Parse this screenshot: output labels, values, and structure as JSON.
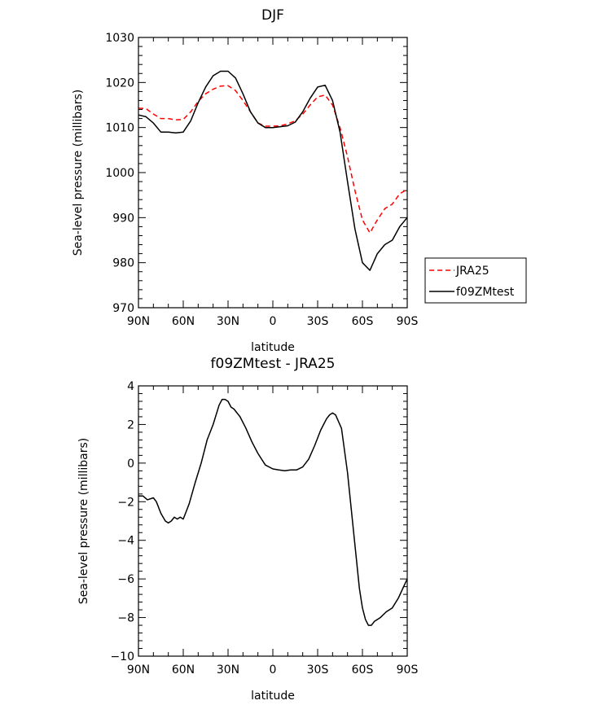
{
  "chart_data": [
    {
      "type": "line",
      "title": "DJF",
      "xlabel": "latitude",
      "ylabel": "Sea-level pressure (millibars)",
      "xlim": [
        90,
        -90
      ],
      "ylim": [
        970,
        1030
      ],
      "x_ticks": [
        {
          "value": 90,
          "label": "90N"
        },
        {
          "value": 60,
          "label": "60N"
        },
        {
          "value": 30,
          "label": "30N"
        },
        {
          "value": 0,
          "label": "0"
        },
        {
          "value": -30,
          "label": "30S"
        },
        {
          "value": -60,
          "label": "60S"
        },
        {
          "value": -90,
          "label": "90S"
        }
      ],
      "y_ticks": [
        970,
        980,
        990,
        1000,
        1010,
        1020,
        1030
      ],
      "legend_position": "right",
      "series": [
        {
          "name": "JRA25",
          "color": "#ff0000",
          "dash": "dashed",
          "x": [
            90,
            85,
            80,
            75,
            70,
            65,
            60,
            55,
            50,
            45,
            40,
            35,
            30,
            25,
            20,
            15,
            10,
            5,
            0,
            -5,
            -10,
            -15,
            -20,
            -25,
            -30,
            -35,
            -40,
            -45,
            -50,
            -55,
            -60,
            -65,
            -70,
            -75,
            -80,
            -85,
            -90
          ],
          "values": [
            1014.3,
            1014.2,
            1013.0,
            1012.0,
            1012.0,
            1011.7,
            1011.8,
            1013.5,
            1015.8,
            1017.5,
            1018.5,
            1019.2,
            1019.3,
            1018.2,
            1016.0,
            1013.5,
            1011.0,
            1010.3,
            1010.3,
            1010.4,
            1010.8,
            1011.5,
            1013.0,
            1015.0,
            1016.8,
            1017.2,
            1015.0,
            1010.0,
            1003.5,
            996.0,
            989.5,
            986.6,
            989.5,
            992.0,
            993.0,
            995.3,
            996.3
          ]
        },
        {
          "name": "f09ZMtest",
          "color": "#000000",
          "dash": "solid",
          "x": [
            90,
            85,
            80,
            75,
            70,
            65,
            60,
            55,
            50,
            45,
            40,
            35,
            30,
            25,
            20,
            15,
            10,
            5,
            0,
            -5,
            -10,
            -15,
            -20,
            -25,
            -30,
            -35,
            -40,
            -45,
            -50,
            -55,
            -60,
            -65,
            -70,
            -75,
            -80,
            -85,
            -90
          ],
          "values": [
            1012.8,
            1012.4,
            1011.0,
            1009.0,
            1009.0,
            1008.8,
            1009.0,
            1011.5,
            1015.5,
            1019.0,
            1021.5,
            1022.5,
            1022.5,
            1021.0,
            1017.5,
            1013.5,
            1011.0,
            1010.0,
            1010.0,
            1010.2,
            1010.4,
            1011.2,
            1013.5,
            1016.5,
            1019.0,
            1019.4,
            1016.0,
            1009.0,
            998.0,
            987.5,
            980.0,
            978.3,
            982.0,
            984.0,
            985.0,
            988.0,
            990.0
          ]
        }
      ]
    },
    {
      "type": "line",
      "title": "f09ZMtest - JRA25",
      "xlabel": "latitude",
      "ylabel": "Sea-level pressure (millibars)",
      "xlim": [
        90,
        -90
      ],
      "ylim": [
        -10,
        4
      ],
      "x_ticks": [
        {
          "value": 90,
          "label": "90N"
        },
        {
          "value": 60,
          "label": "60N"
        },
        {
          "value": 30,
          "label": "30N"
        },
        {
          "value": 0,
          "label": "0"
        },
        {
          "value": -30,
          "label": "30S"
        },
        {
          "value": -60,
          "label": "60S"
        },
        {
          "value": -90,
          "label": "90S"
        }
      ],
      "y_ticks": [
        -10,
        -8,
        -6,
        -4,
        -2,
        0,
        2,
        4
      ],
      "series": [
        {
          "name": "",
          "color": "#000000",
          "dash": "solid",
          "x": [
            90,
            87,
            84,
            80,
            78,
            75,
            72,
            70,
            68,
            66,
            64,
            62,
            60,
            58,
            56,
            52,
            48,
            44,
            40,
            36,
            34,
            32,
            30,
            28,
            26,
            22,
            18,
            14,
            10,
            5,
            0,
            -4,
            -8,
            -12,
            -16,
            -20,
            -24,
            -28,
            -32,
            -36,
            -38,
            -40,
            -42,
            -46,
            -50,
            -54,
            -58,
            -60,
            -62,
            -64,
            -66,
            -68,
            -72,
            -76,
            -80,
            -84,
            -87,
            -90
          ],
          "values": [
            -1.7,
            -1.7,
            -1.9,
            -1.8,
            -2.0,
            -2.6,
            -3.0,
            -3.1,
            -3.0,
            -2.8,
            -2.9,
            -2.8,
            -2.9,
            -2.5,
            -2.1,
            -1.0,
            0.0,
            1.2,
            2.0,
            3.0,
            3.3,
            3.3,
            3.2,
            2.9,
            2.8,
            2.4,
            1.8,
            1.1,
            0.5,
            -0.1,
            -0.3,
            -0.35,
            -0.4,
            -0.35,
            -0.35,
            -0.2,
            0.2,
            0.9,
            1.7,
            2.3,
            2.5,
            2.6,
            2.5,
            1.8,
            -0.5,
            -3.5,
            -6.5,
            -7.5,
            -8.1,
            -8.4,
            -8.4,
            -8.2,
            -8.0,
            -7.7,
            -7.5,
            -7.0,
            -6.5,
            -6.0
          ]
        }
      ]
    }
  ]
}
